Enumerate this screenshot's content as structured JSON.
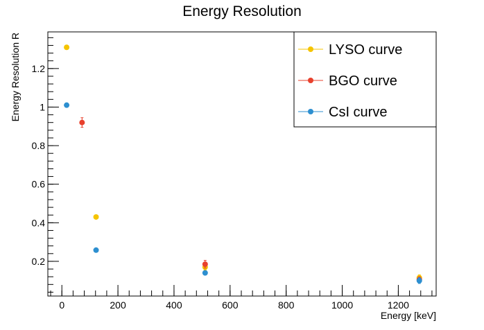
{
  "chart_data": {
    "type": "scatter",
    "title": "Energy Resolution",
    "xlabel": "Energy [keV]",
    "ylabel": "Energy Resolution R",
    "xlim": [
      -50,
      1335
    ],
    "ylim": [
      0.02,
      1.39
    ],
    "xticks": [
      0,
      200,
      400,
      600,
      800,
      1000,
      1200
    ],
    "yticks": [
      0.2,
      0.4,
      0.6,
      0.8,
      1,
      1.2
    ],
    "xtick_labels": [
      "0",
      "200",
      "400",
      "600",
      "800",
      "1000",
      "1200"
    ],
    "ytick_labels": [
      "0.2",
      "0.4",
      "0.6",
      "0.8",
      "1",
      "1.2"
    ],
    "legend_position": "top-right",
    "grid": false,
    "series": [
      {
        "name": "LYSO curve",
        "color": "#f5c400",
        "points": [
          {
            "x": 17,
            "y": 1.31,
            "err": 0.008
          },
          {
            "x": 122,
            "y": 0.43,
            "err": 0.006
          },
          {
            "x": 511,
            "y": 0.17,
            "err": 0.015
          },
          {
            "x": 1275,
            "y": 0.115,
            "err": 0.015
          }
        ]
      },
      {
        "name": "BGO curve",
        "color": "#e8412d",
        "points": [
          {
            "x": 72,
            "y": 0.92,
            "err": 0.025
          },
          {
            "x": 511,
            "y": 0.185,
            "err": 0.02
          },
          {
            "x": 1275,
            "y": 0.105,
            "err": 0.015
          }
        ]
      },
      {
        "name": "CsI curve",
        "color": "#2d8fd0",
        "points": [
          {
            "x": 17,
            "y": 1.01,
            "err": 0.008
          },
          {
            "x": 122,
            "y": 0.258,
            "err": 0.006
          },
          {
            "x": 511,
            "y": 0.14,
            "err": 0.006
          },
          {
            "x": 1275,
            "y": 0.1,
            "err": 0.015
          }
        ]
      }
    ]
  }
}
